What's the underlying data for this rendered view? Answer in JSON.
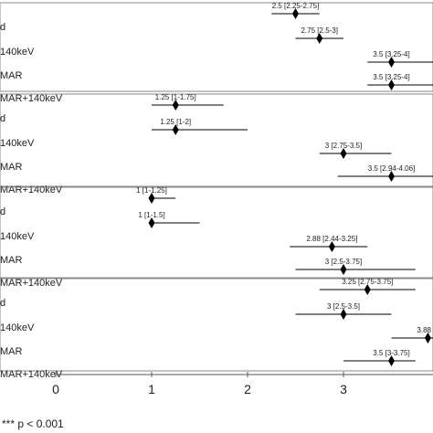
{
  "chart_data": {
    "type": "forest",
    "xlim": [
      0,
      4
    ],
    "x_ticks": [
      "0",
      "1",
      "2",
      "3"
    ],
    "groups": [
      {
        "rows": [
          {
            "label": "d",
            "median": 2.5,
            "ci_low": 2.25,
            "ci_high": 2.75,
            "annotation": "2.5 [2.25-2.75]"
          },
          {
            "label": "140keV",
            "median": 2.75,
            "ci_low": 2.5,
            "ci_high": 3,
            "annotation": "2.75 [2.5-3]"
          },
          {
            "label": "MAR",
            "median": 3.5,
            "ci_low": 3.25,
            "ci_high": 4,
            "annotation": "3.5 [3.25-4]"
          },
          {
            "label": "MAR+140keV",
            "median": 3.5,
            "ci_low": 3.25,
            "ci_high": 4,
            "annotation": "3.5 [3.25-4]"
          }
        ]
      },
      {
        "rows": [
          {
            "label": "d",
            "median": 1.25,
            "ci_low": 1,
            "ci_high": 1.75,
            "annotation": "1.25 [1-1.75]"
          },
          {
            "label": "140keV",
            "median": 1.25,
            "ci_low": 1,
            "ci_high": 2,
            "annotation": "1.25 [1-2]"
          },
          {
            "label": "MAR",
            "median": 3,
            "ci_low": 2.75,
            "ci_high": 3.5,
            "annotation": "3 [2.75-3.5]"
          },
          {
            "label": "MAR+140keV",
            "median": 3.5,
            "ci_low": 2.94,
            "ci_high": 4.06,
            "annotation": "3.5 [2.94-4.06]"
          }
        ]
      },
      {
        "rows": [
          {
            "label": "d",
            "median": 1,
            "ci_low": 1,
            "ci_high": 1.25,
            "annotation": "1 [1-1.25]"
          },
          {
            "label": "140keV",
            "median": 1,
            "ci_low": 1,
            "ci_high": 1.5,
            "annotation": "1 [1-1.5]"
          },
          {
            "label": "MAR",
            "median": 2.88,
            "ci_low": 2.44,
            "ci_high": 3.25,
            "annotation": "2.88 [2.44-3.25]"
          },
          {
            "label": "MAR+140keV",
            "median": 3,
            "ci_low": 2.5,
            "ci_high": 3.75,
            "annotation": "3 [2.5-3.75]"
          }
        ]
      },
      {
        "rows": [
          {
            "label": "d",
            "median": 3.25,
            "ci_low": 2.75,
            "ci_high": 3.75,
            "annotation": "3.25 [2.75-3.75]"
          },
          {
            "label": "140keV",
            "median": 3,
            "ci_low": 2.5,
            "ci_high": 3.5,
            "annotation": "3 [2.5-3.5]"
          },
          {
            "label": "MAR",
            "median": 3.88,
            "ci_low": 3.5,
            "ci_high": 4.25,
            "annotation": "3.88"
          },
          {
            "label": "MAR+140keV",
            "median": 3.5,
            "ci_low": 3,
            "ci_high": 3.75,
            "annotation": "3.5 [3-3.75]"
          }
        ]
      }
    ],
    "footnote": "*** p < 0.001",
    "colors": {
      "marker": "#000000",
      "line": "#000000",
      "separator": "#888888",
      "text": "#222222"
    }
  }
}
